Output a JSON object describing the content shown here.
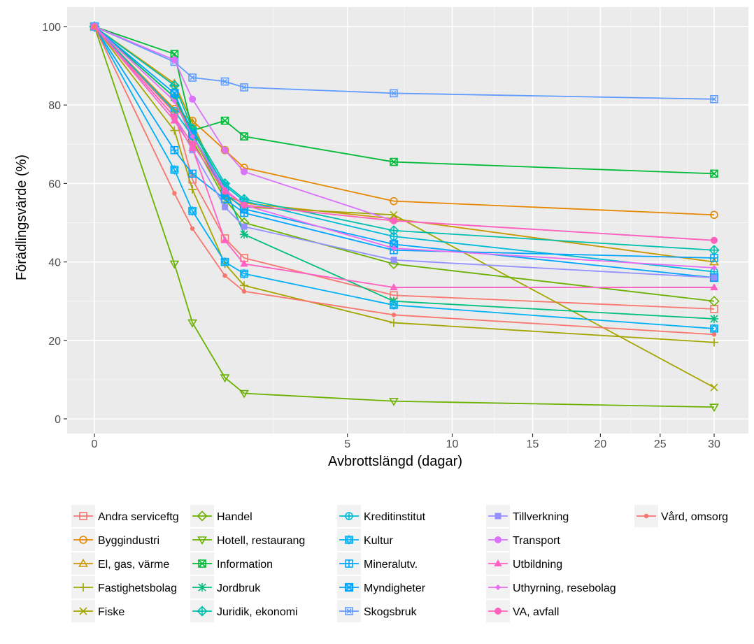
{
  "chart_data": {
    "type": "line",
    "title": "",
    "xlabel": "Avbrottslängd (dagar)",
    "ylabel": "Förädlingsvärde (%)",
    "ylim": [
      0,
      100
    ],
    "x": [
      0,
      0.5,
      0.75,
      1.33,
      1.75,
      7,
      30
    ],
    "x_ticks": [
      0,
      5,
      10,
      15,
      20,
      25,
      30
    ],
    "y_ticks": [
      0,
      20,
      40,
      60,
      80,
      100
    ],
    "grid": true,
    "legend_position": "bottom",
    "series": [
      {
        "name": "Andra serviceftg",
        "color": "#F8766D",
        "marker": "square-open",
        "values": [
          100,
          78,
          61,
          46,
          41,
          31.5,
          28
        ]
      },
      {
        "name": "Byggindustri",
        "color": "#E58700",
        "marker": "circle-open",
        "values": [
          100,
          79,
          76,
          68.5,
          64,
          55.5,
          52
        ]
      },
      {
        "name": "El, gas, värme",
        "color": "#C99800",
        "marker": "triangle-open",
        "values": [
          100,
          85.5,
          75.5,
          57,
          55,
          51,
          40
        ]
      },
      {
        "name": "Fastighetsbolag",
        "color": "#A3A500",
        "marker": "plus",
        "values": [
          100,
          73.5,
          58.5,
          39.5,
          34,
          24.5,
          19.5
        ]
      },
      {
        "name": "Fiske",
        "color": "#A3A500",
        "marker": "cross",
        "values": [
          100,
          82,
          72,
          57,
          54,
          52,
          8
        ]
      },
      {
        "name": "Handel",
        "color": "#6BB100",
        "marker": "diamond-open",
        "values": [
          100,
          82,
          71,
          56,
          50,
          39.5,
          30
        ]
      },
      {
        "name": "Hotell, restaurang",
        "color": "#6BB100",
        "marker": "triangle-down-open",
        "values": [
          100,
          39.5,
          24.5,
          10.5,
          6.5,
          4.5,
          3
        ]
      },
      {
        "name": "Information",
        "color": "#00BA38",
        "marker": "square-cross",
        "values": [
          100,
          93,
          73.5,
          76,
          72,
          65.5,
          62.5
        ]
      },
      {
        "name": "Jordbruk",
        "color": "#00BF7D",
        "marker": "asterisk",
        "values": [
          100,
          82,
          73.5,
          59,
          47,
          30,
          25.5
        ]
      },
      {
        "name": "Juridik, ekonomi",
        "color": "#00C0AF",
        "marker": "diamond-plus",
        "values": [
          100,
          85,
          74,
          60,
          56,
          48,
          43
        ]
      },
      {
        "name": "Kreditinstitut",
        "color": "#00BCD8",
        "marker": "circle-plus",
        "values": [
          100,
          78.5,
          72,
          59.5,
          55.5,
          46.5,
          37.5
        ]
      },
      {
        "name": "Kultur",
        "color": "#00B0F6",
        "marker": "star-square",
        "values": [
          100,
          63.5,
          53,
          40,
          37,
          29,
          23
        ]
      },
      {
        "name": "Mineralutv.",
        "color": "#00A5FF",
        "marker": "square-plus",
        "values": [
          100,
          68.5,
          62.5,
          56,
          52.5,
          43,
          41
        ]
      },
      {
        "name": "Myndigheter",
        "color": "#00A5FF",
        "marker": "square-x",
        "values": [
          100,
          83,
          72.5,
          57.5,
          53.5,
          44.5,
          36
        ]
      },
      {
        "name": "Skogsbruk",
        "color": "#619CFF",
        "marker": "square-x-open",
        "values": [
          100,
          91,
          87,
          86,
          84.5,
          83,
          81.5
        ]
      },
      {
        "name": "Tillverkning",
        "color": "#9590FF",
        "marker": "square-filled",
        "values": [
          100,
          77,
          68.5,
          54,
          49,
          40.5,
          36
        ]
      },
      {
        "name": "Transport",
        "color": "#DB72FB",
        "marker": "circle-filled",
        "values": [
          100,
          91.5,
          81.5,
          68.5,
          63,
          50.5,
          45.5
        ]
      },
      {
        "name": "Utbildning",
        "color": "#FF61C3",
        "marker": "triangle-filled",
        "values": [
          100,
          76,
          69,
          45.5,
          39.5,
          33.5,
          33.5
        ]
      },
      {
        "name": "Uthyrning, resebolag",
        "color": "#E76BF3",
        "marker": "diamond-filled",
        "values": [
          100,
          81,
          72,
          58.5,
          54.5,
          43.5,
          38.5
        ]
      },
      {
        "name": "VA, avfall",
        "color": "#FF62BC",
        "marker": "circle-filled",
        "values": [
          100,
          77,
          70,
          58,
          54.5,
          50.5,
          45.5
        ]
      },
      {
        "name": "Vård, omsorg",
        "color": "#F8766D",
        "marker": "dot-filled",
        "values": [
          100,
          57.5,
          48.5,
          36.5,
          32.5,
          26.5,
          21.5
        ]
      }
    ]
  }
}
